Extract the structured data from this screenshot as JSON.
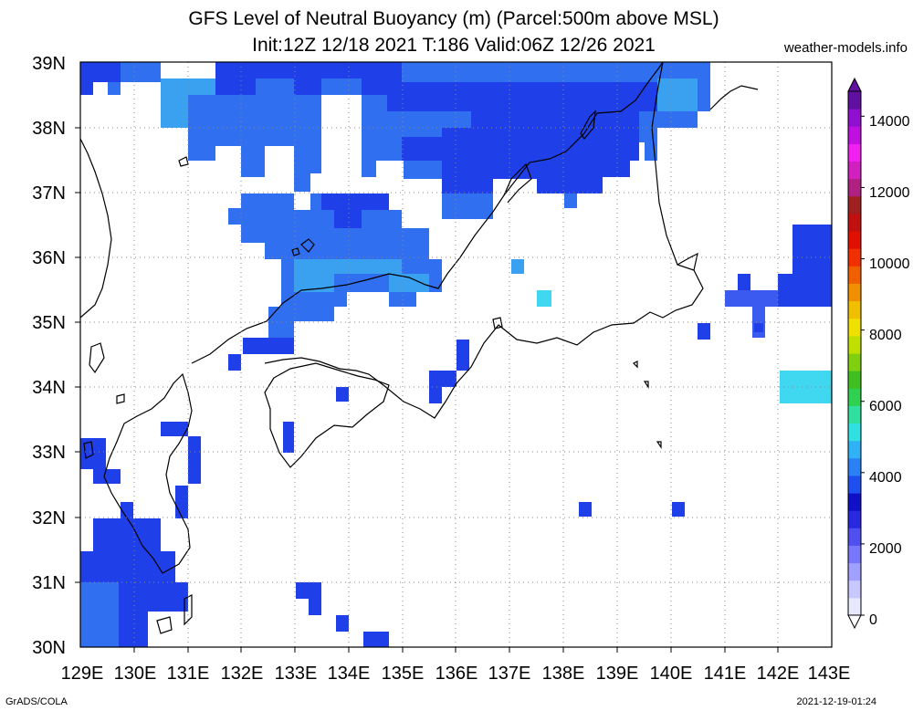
{
  "title_line1": "GFS Level of Neutral Buoyancy (m) (Parcel:500m above MSL)",
  "title_line2": "Init:12Z 12/18 2021 T:186 Valid:06Z 12/26 2021",
  "site": "weather-models.info",
  "footer_left": "GrADS/COLA",
  "footer_right": "2021-12-19-01:24",
  "lon_labels": [
    "129E",
    "130E",
    "131E",
    "132E",
    "133E",
    "134E",
    "135E",
    "136E",
    "137E",
    "138E",
    "139E",
    "140E",
    "141E",
    "142E",
    "143E"
  ],
  "lat_labels": [
    "30N",
    "31N",
    "32N",
    "33N",
    "34N",
    "35N",
    "36N",
    "37N",
    "38N",
    "39N"
  ],
  "colorbar_labels": [
    "0",
    "2000",
    "4000",
    "6000",
    "8000",
    "10000",
    "12000",
    "14000"
  ],
  "colors": {
    "deep_blue": "#1f3fe8",
    "mid_blue": "#2f6ff0",
    "light_blue": "#3aa0f0",
    "cyan": "#40d8f0",
    "coast": "#000000",
    "grid": "#888888"
  },
  "colorbar_colors": [
    "#e8e8ff",
    "#c8c8ff",
    "#a0a0ff",
    "#7878ff",
    "#5050f0",
    "#2828e0",
    "#1010c8",
    "#1e50f0",
    "#2a80f5",
    "#30b0f5",
    "#30e0e0",
    "#30e0a0",
    "#30d050",
    "#40c020",
    "#80d010",
    "#c0e000",
    "#f0e000",
    "#f0c000",
    "#f09000",
    "#f06000",
    "#f03000",
    "#e01000",
    "#c01010",
    "#a02020",
    "#b02080",
    "#d020c0",
    "#f020f0",
    "#c010e0",
    "#9010d0",
    "#6010a0"
  ]
}
